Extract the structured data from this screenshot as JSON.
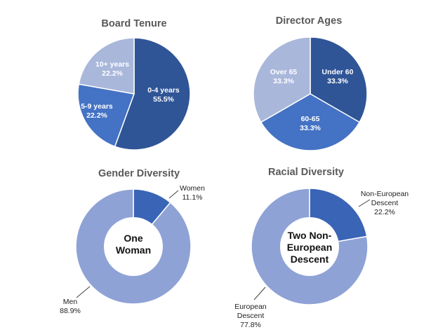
{
  "chart_data": [
    {
      "type": "pie",
      "title": "Board Tenure",
      "slices": [
        {
          "label": "0-4 years",
          "value_label": "55.5%",
          "value": 55.5,
          "color": "#2f5597"
        },
        {
          "label": "5-9 years",
          "value_label": "22.2%",
          "value": 22.2,
          "color": "#4472c4"
        },
        {
          "label": "10+ years",
          "value_label": "22.2%",
          "value": 22.2,
          "color": "#a9b7db"
        }
      ]
    },
    {
      "type": "pie",
      "title": "Director Ages",
      "slices": [
        {
          "label": "Under 60",
          "value_label": "33.3%",
          "value": 33.3,
          "color": "#2f5597"
        },
        {
          "label": "60-65",
          "value_label": "33.3%",
          "value": 33.3,
          "color": "#4472c4"
        },
        {
          "label": "Over 65",
          "value_label": "33.3%",
          "value": 33.3,
          "color": "#a9b7db"
        }
      ]
    },
    {
      "type": "donut",
      "title": "Gender Diversity",
      "center_lines": [
        "One",
        "Woman"
      ],
      "slices": [
        {
          "label": "Women",
          "value_label": "11.1%",
          "value": 11.1,
          "color": "#3a64b5"
        },
        {
          "label": "Men",
          "value_label": "88.9%",
          "value": 88.9,
          "color": "#8fa2d6"
        }
      ]
    },
    {
      "type": "donut",
      "title": "Racial Diversity",
      "center_lines": [
        "Two Non-",
        "European",
        "Descent"
      ],
      "slices": [
        {
          "label_lines": [
            "Non-European",
            "Descent"
          ],
          "value_label": "22.2%",
          "value": 22.2,
          "color": "#3a64b5"
        },
        {
          "label_lines": [
            "European",
            "Descent"
          ],
          "value_label": "77.8%",
          "value": 77.8,
          "color": "#8fa2d6"
        }
      ]
    }
  ]
}
